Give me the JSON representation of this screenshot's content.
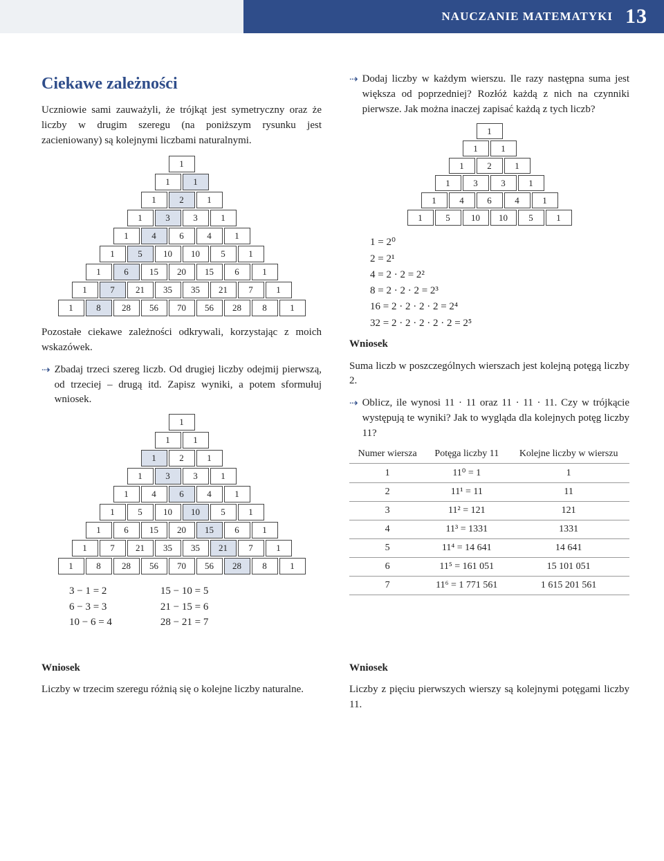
{
  "header": {
    "text": "NAUCZANIE MATEMATYKI",
    "page": "13"
  },
  "left": {
    "title": "Ciekawe zależności",
    "intro": "Uczniowie sami zauważyli, że trójkąt jest symetryczny oraz że liczby w drugim szeregu (na poniższym rysunku jest zacieniowany) są kolejnymi liczbami naturalnymi.",
    "pascal1": {
      "rows": [
        [
          1
        ],
        [
          1,
          1
        ],
        [
          1,
          2,
          1
        ],
        [
          1,
          3,
          3,
          1
        ],
        [
          1,
          4,
          6,
          4,
          1
        ],
        [
          1,
          5,
          10,
          10,
          5,
          1
        ],
        [
          1,
          6,
          15,
          20,
          15,
          6,
          1
        ],
        [
          1,
          7,
          21,
          35,
          35,
          21,
          7,
          1
        ],
        [
          1,
          8,
          28,
          56,
          70,
          56,
          28,
          8,
          1
        ]
      ],
      "hlIndex": 1
    },
    "after1": "Pozostałe ciekawe zależności odkrywali, korzystając z moich wskazówek.",
    "bullet1": "Zbadaj trzeci szereg liczb. Od drugiej liczby odejmij pierwszą, od trzeciej – drugą itd. Zapisz wyniki, a potem sformułuj wniosek.",
    "pascal2": {
      "rows": [
        [
          1
        ],
        [
          1,
          1
        ],
        [
          1,
          2,
          1
        ],
        [
          1,
          3,
          3,
          1
        ],
        [
          1,
          4,
          6,
          4,
          1
        ],
        [
          1,
          5,
          10,
          10,
          5,
          1
        ],
        [
          1,
          6,
          15,
          20,
          15,
          6,
          1
        ],
        [
          1,
          7,
          21,
          35,
          35,
          21,
          7,
          1
        ],
        [
          1,
          8,
          28,
          56,
          70,
          56,
          28,
          8,
          1
        ]
      ],
      "hlIndex": 2
    },
    "eqPairLeft": [
      "3 − 1 = 2",
      "6 − 3 = 3",
      "10 − 6 = 4"
    ],
    "eqPairRight": [
      "15 − 10 = 5",
      "21 − 15 = 6",
      "28 − 21 = 7"
    ],
    "wniosekL": "Wniosek",
    "concL": "Liczby w trzecim szeregu różnią się o kolejne liczby naturalne."
  },
  "right": {
    "bulletTop": "Dodaj liczby w każdym wierszu. Ile razy następna suma jest większa od poprzedniej? Rozłóż każdą z nich na czynniki pierwsze. Jak można inaczej zapisać każdą z tych liczb?",
    "pascal3": {
      "rows": [
        [
          1
        ],
        [
          1,
          1
        ],
        [
          1,
          2,
          1
        ],
        [
          1,
          3,
          3,
          1
        ],
        [
          1,
          4,
          6,
          4,
          1
        ],
        [
          1,
          5,
          10,
          10,
          5,
          1
        ]
      ]
    },
    "powersOf2": [
      "1 = 2⁰",
      "2 = 2¹",
      "4 = 2 · 2 = 2²",
      "8 = 2 · 2 · 2 = 2³",
      "16 = 2 · 2 · 2 · 2 = 2⁴",
      "32 = 2 · 2 · 2 · 2 · 2 = 2⁵"
    ],
    "wniosekR1": "Wniosek",
    "concR1": "Suma liczb w poszczególnych wierszach jest kolejną potęgą liczby 2.",
    "bullet2": "Oblicz, ile wynosi 11 · 11 oraz  11 · 11 · 11. Czy w trójkącie występują te wyniki? Jak to wygląda dla kolejnych potęg liczby 11?",
    "table": {
      "head": [
        "Numer wiersza",
        "Potęga liczby 11",
        "Kolejne liczby w wierszu"
      ],
      "rows": [
        [
          "1",
          "11⁰ = 1",
          "1"
        ],
        [
          "2",
          "11¹ = 11",
          "11"
        ],
        [
          "3",
          "11² = 121",
          "121"
        ],
        [
          "4",
          "11³ = 1331",
          "1331"
        ],
        [
          "5",
          "11⁴ = 14 641",
          "14 641"
        ],
        [
          "6",
          "11⁵ = 161 051",
          "15 101 051"
        ],
        [
          "7",
          "11⁶ = 1 771 561",
          "1 615 201 561"
        ]
      ]
    },
    "wniosekR2": "Wniosek",
    "concR2": "Liczby z pięciu pierwszych wierszy są kolejnymi potęgami liczby 11."
  }
}
